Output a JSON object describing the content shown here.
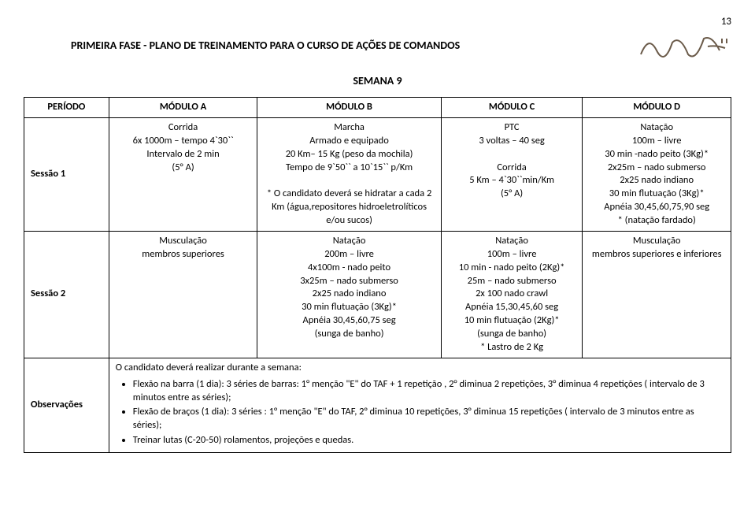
{
  "page_number": "13",
  "header_title": "PRIMEIRA  FASE  -  PLANO DE TREINAMENTO PARA O CURSO DE AÇÕES DE COMANDOS",
  "subheader": "SEMANA 9",
  "columns": {
    "periodo": "PERÍODO",
    "mod_a": "MÓDULO A",
    "mod_b": "MÓDULO B",
    "mod_c": "MÓDULO C",
    "mod_d": "MÓDULO D"
  },
  "sessao1": {
    "label": "Sessão 1",
    "a": "Corrida\n6x 1000m – tempo 4`30``\nIntervalo de 2 min\n(5° A)",
    "b": "Marcha\nArmado e equipado\n20 Km– 15 Kg (peso da mochila)\nTempo de 9`50`` a 10`15`` p/Km\n\n* O candidato deverá se hidratar a cada 2 Km (água,repositores hidroeletrolíticos e/ou sucos)",
    "c": "PTC\n3 voltas – 40 seg\n\nCorrida\n5 Km – 4`30``min/Km\n(5° A)",
    "d": "Natação\n100m – livre\n30 min -nado peito (3Kg)*\n2x25m – nado submerso\n2x25 nado indiano\n30 min flutuação (3Kg)*\nApnéia 30,45,60,75,90 seg\n* (natação fardado)"
  },
  "sessao2": {
    "label": "Sessão 2",
    "a": "Musculação\nmembros superiores",
    "b": "Natação\n200m – livre\n4x100m - nado peito\n3x25m – nado submerso\n2x25 nado indiano\n30 min flutuação (3Kg)*\nApnéia 30,45,60,75 seg\n(sunga de banho)",
    "c": "Natação\n100m – livre\n10 min - nado peito (2Kg)*\n25m – nado submerso\n2x 100 nado crawl\nApnéia 15,30,45,60 seg\n10 min flutuação (2Kg)*\n(sunga de banho)\n* Lastro de 2 Kg",
    "d": "Musculação\nmembros superiores e inferiores"
  },
  "obs": {
    "label": "Observações",
    "lead": "O candidato deverá realizar durante a semana:",
    "items": [
      "Flexão na barra (1 dia): 3 séries de barras: 1° menção \"E\" do TAF + 1 repetição , 2° diminua 2 repetições, 3° diminua 4 repetições        ( intervalo de 3 minutos entre as séries);",
      "Flexão de braços (1 dia): 3 séries : 1° menção \"E\"  do TAF, 2° diminua 10 repetições, 3° diminua 15 repetições ( intervalo de 3 minutos entre as séries);",
      "Treinar lutas (C-20-50)  rolamentos, projeções e quedas."
    ]
  }
}
